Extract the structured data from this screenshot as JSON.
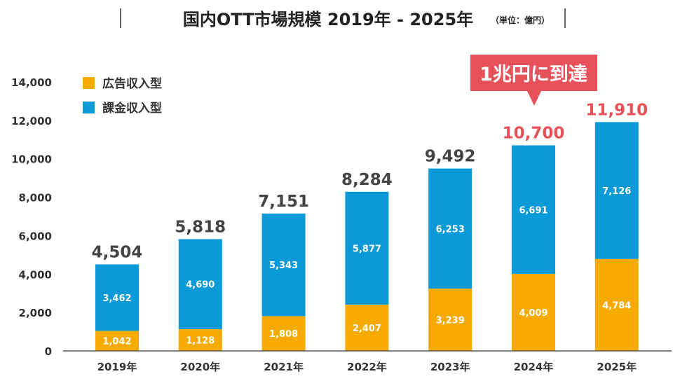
{
  "chart_data": {
    "type": "bar",
    "stacked": true,
    "title": "国内OTT市場規模 2019年 - 2025年",
    "unit_note": "（単位：億円）",
    "categories": [
      "2019年",
      "2020年",
      "2021年",
      "2022年",
      "2023年",
      "2024年",
      "2025年"
    ],
    "series": [
      {
        "name": "広告収入型",
        "color": "#f7ab00",
        "values": [
          1042,
          1128,
          1808,
          2407,
          3239,
          4009,
          4784
        ],
        "labels": [
          "1,042",
          "1,128",
          "1,808",
          "2,407",
          "3,239",
          "4,009",
          "4,784"
        ]
      },
      {
        "name": "課金収入型",
        "color": "#0a9ad8",
        "values": [
          3462,
          4690,
          5343,
          5877,
          6253,
          6691,
          7126
        ],
        "labels": [
          "3,462",
          "4,690",
          "5,343",
          "5,877",
          "6,253",
          "6,691",
          "7,126"
        ]
      }
    ],
    "totals": [
      "4,504",
      "5,818",
      "7,151",
      "8,284",
      "9,492",
      "10,700",
      "11,910"
    ],
    "total_colors": [
      "#444444",
      "#444444",
      "#444444",
      "#444444",
      "#444444",
      "#e7525a",
      "#e7525a"
    ],
    "ylim": [
      0,
      14000
    ],
    "yticks": [
      "0",
      "2,000",
      "4,000",
      "6,000",
      "8,000",
      "10,000",
      "12,000",
      "14,000"
    ],
    "ytick_values": [
      0,
      2000,
      4000,
      6000,
      8000,
      10000,
      12000,
      14000
    ],
    "grid": false,
    "legend": "top-left",
    "annotation": {
      "text": "1兆円に到達",
      "target": "2024年",
      "color": "#e7525a"
    }
  }
}
